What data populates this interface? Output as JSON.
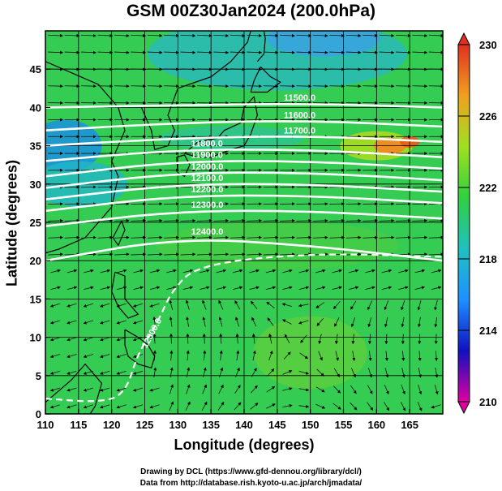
{
  "chart_data": {
    "type": "heatmap",
    "title": "GSM 00Z30Jan2024 (200.0hPa)",
    "xlabel": "Longitude (degrees)",
    "ylabel": "Latitude  (degrees)",
    "xlim": [
      110,
      170
    ],
    "ylim": [
      0,
      50
    ],
    "x_ticks": [
      110,
      115,
      120,
      125,
      130,
      135,
      140,
      145,
      150,
      155,
      160,
      165
    ],
    "y_ticks": [
      0,
      5,
      10,
      15,
      20,
      25,
      30,
      35,
      40,
      45
    ],
    "colorbar": {
      "min": 210,
      "max": 230,
      "ticks": [
        210,
        214,
        218,
        222,
        226,
        230
      ],
      "colors": [
        "#e000a0",
        "#1010c0",
        "#1e90ff",
        "#20c0c0",
        "#30d040",
        "#a0e020",
        "#f0a020",
        "#e03020"
      ]
    },
    "field_values_sample": [
      {
        "lon": 112,
        "lat": 35,
        "value": 218
      },
      {
        "lon": 140,
        "lat": 47,
        "value": 219
      },
      {
        "lon": 160,
        "lat": 35,
        "value": 226
      },
      {
        "lon": 150,
        "lat": 10,
        "value": 222
      },
      {
        "lon": 120,
        "lat": 5,
        "value": 221
      }
    ],
    "contours": [
      {
        "label": "11500.0",
        "lat_at": [
          [
            110,
            40
          ],
          [
            130,
            40.3
          ],
          [
            150,
            40.5
          ],
          [
            170,
            40
          ]
        ]
      },
      {
        "label": "11600.0",
        "lat_at": [
          [
            110,
            37
          ],
          [
            130,
            38
          ],
          [
            150,
            38.3
          ],
          [
            170,
            37.5
          ]
        ]
      },
      {
        "label": "11700.0",
        "lat_at": [
          [
            110,
            35
          ],
          [
            130,
            36
          ],
          [
            150,
            36.3
          ],
          [
            170,
            35.5
          ]
        ]
      },
      {
        "label": "11800.0",
        "lat_at": [
          [
            110,
            33
          ],
          [
            130,
            34.5
          ],
          [
            150,
            34.5
          ],
          [
            170,
            33.5
          ]
        ]
      },
      {
        "label": "11900.0",
        "lat_at": [
          [
            110,
            31
          ],
          [
            130,
            33
          ],
          [
            150,
            33
          ],
          [
            170,
            32
          ]
        ]
      },
      {
        "label": "12000.0",
        "lat_at": [
          [
            110,
            29.5
          ],
          [
            130,
            31.5
          ],
          [
            150,
            31.5
          ],
          [
            170,
            30.5
          ]
        ]
      },
      {
        "label": "12100.0",
        "lat_at": [
          [
            110,
            28
          ],
          [
            130,
            30
          ],
          [
            150,
            30
          ],
          [
            170,
            29
          ]
        ]
      },
      {
        "label": "12200.0",
        "lat_at": [
          [
            110,
            26.5
          ],
          [
            130,
            28.5
          ],
          [
            150,
            28.5
          ],
          [
            170,
            27.5
          ]
        ]
      },
      {
        "label": "12300.0",
        "lat_at": [
          [
            110,
            24.5
          ],
          [
            130,
            26.5
          ],
          [
            150,
            26.5
          ],
          [
            170,
            25.5
          ]
        ]
      },
      {
        "label": "12400.0",
        "lat_at": [
          [
            110,
            20
          ],
          [
            130,
            23
          ],
          [
            150,
            22
          ],
          [
            170,
            20
          ]
        ]
      }
    ],
    "dashed_contours": [
      {
        "label": "12500.0",
        "points": [
          [
            110,
            2
          ],
          [
            118,
            1.5
          ],
          [
            122,
            2.5
          ],
          [
            124,
            8
          ],
          [
            127,
            12
          ],
          [
            129,
            16
          ],
          [
            133,
            19.5
          ],
          [
            150,
            21
          ],
          [
            170,
            20.5
          ]
        ]
      }
    ]
  },
  "credits": {
    "line1": "Drawing by DCL (https://www.gfd-dennou.org/library/dcl/)",
    "line2": "Data from http://database.rish.kyoto-u.ac.jp/arch/jmadata/"
  }
}
